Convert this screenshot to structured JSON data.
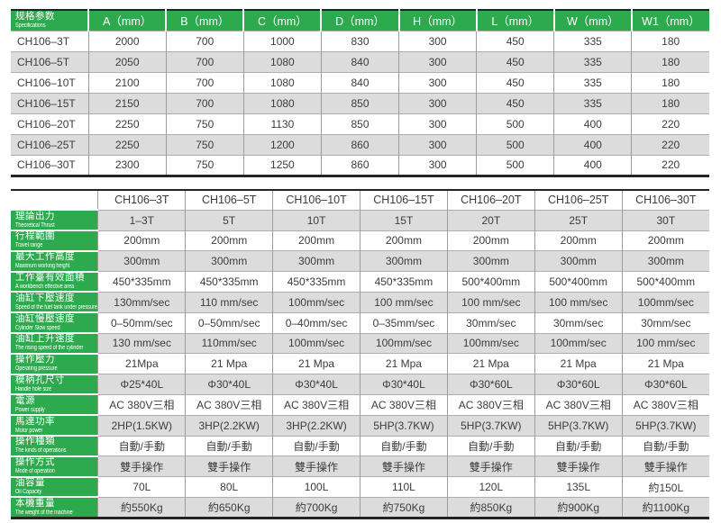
{
  "colors": {
    "accent_green": "#2daa4e",
    "stripe_gray": "#dcdcdc",
    "border_dark": "#232323",
    "divider_gray": "#9c9c9c",
    "text_dark": "#3c3c3c",
    "header_text": "#ffffff"
  },
  "dimensions_table": {
    "header": {
      "label_zh": "规格参数",
      "label_en": "Specifications",
      "columns": [
        "A（mm）",
        "B（mm）",
        "C（mm）",
        "D（mm）",
        "H（mm）",
        "L（mm）",
        "W（mm）",
        "W1（mm）"
      ]
    },
    "rows": [
      {
        "model": "CH106–3T",
        "values": [
          "2000",
          "700",
          "1000",
          "830",
          "300",
          "450",
          "335",
          "180"
        ]
      },
      {
        "model": "CH106–5T",
        "values": [
          "2050",
          "700",
          "1080",
          "840",
          "300",
          "450",
          "335",
          "180"
        ]
      },
      {
        "model": "CH106–10T",
        "values": [
          "2100",
          "700",
          "1080",
          "840",
          "300",
          "450",
          "335",
          "180"
        ]
      },
      {
        "model": "CH106–15T",
        "values": [
          "2150",
          "700",
          "1080",
          "850",
          "300",
          "450",
          "335",
          "180"
        ]
      },
      {
        "model": "CH106–20T",
        "values": [
          "2250",
          "750",
          "1130",
          "850",
          "300",
          "500",
          "400",
          "220"
        ]
      },
      {
        "model": "CH106–25T",
        "values": [
          "2250",
          "750",
          "1200",
          "860",
          "300",
          "500",
          "400",
          "220"
        ]
      },
      {
        "model": "CH106–30T",
        "values": [
          "2300",
          "750",
          "1250",
          "860",
          "300",
          "500",
          "400",
          "220"
        ]
      }
    ]
  },
  "specs_table": {
    "header": {
      "label_zh": "规格参数",
      "label_en": "Specifications",
      "models": [
        "CH106–3T",
        "CH106–5T",
        "CH106–10T",
        "CH106–15T",
        "CH106–20T",
        "CH106–25T",
        "CH106–30T"
      ]
    },
    "rows": [
      {
        "zh": "理論出力",
        "en": "Theoretical Thrust",
        "values": [
          "1–3T",
          "5T",
          "10T",
          "15T",
          "20T",
          "25T",
          "30T"
        ]
      },
      {
        "zh": "行程範圍",
        "en": "Travel range",
        "values": [
          "200mm",
          "200mm",
          "200mm",
          "200mm",
          "200mm",
          "200mm",
          "200mm"
        ]
      },
      {
        "zh": "最大工作高度",
        "en": "Maximum working height",
        "values": [
          "300mm",
          "300mm",
          "300mm",
          "300mm",
          "300mm",
          "300mm",
          "300mm"
        ]
      },
      {
        "zh": "工作臺有效面積",
        "en": "A workbench effective area",
        "values": [
          "450*335mm",
          "450*335mm",
          "450*335mm",
          "450*335mm",
          "500*400mm",
          "500*400mm",
          "500*400mm"
        ]
      },
      {
        "zh": "油缸下壓速度",
        "en": "Speed of the fuel tank under pressure",
        "values": [
          "130mm/sec",
          "110 mm/sec",
          "100mm/sec",
          "100 mm/sec",
          "100 mm/sec",
          "100 mm/sec",
          "100mm/sec"
        ]
      },
      {
        "zh": "油缸慢壓速度",
        "en": "Cylinder Slow speed",
        "values": [
          "0–50mm/sec",
          "0–50mm/sec",
          "0–40mm/sec",
          "0–35mm/sec",
          "30mm/sec",
          "30mm/sec",
          "30mm/sec"
        ]
      },
      {
        "zh": "油缸上升速度",
        "en": "The rising speed of the cylinder",
        "values": [
          "130 mm/sec",
          "110mm/sec",
          "100mm/sec",
          "100mm/sec",
          "100mm/sec",
          "100mm/sec",
          "100 mm/sec"
        ]
      },
      {
        "zh": "操作壓力",
        "en": "Operating pressure",
        "values": [
          "21Mpa",
          "21 Mpa",
          "21 Mpa",
          "21 Mpa",
          "21 Mpa",
          "21 Mpa",
          "21 Mpa"
        ]
      },
      {
        "zh": "模柄孔尺寸",
        "en": "Handle hole size",
        "values": [
          "Φ25*40L",
          "Φ30*40L",
          "Φ30*40L",
          "Φ30*40L",
          "Φ30*60L",
          "Φ30*60L",
          "Φ30*60L"
        ]
      },
      {
        "zh": "電源",
        "en": "Power supply",
        "values": [
          "AC 380V三相",
          "AC 380V三相",
          "AC 380V三相",
          "AC 380V三相",
          "AC 380V三相",
          "AC 380V三相",
          "AC 380V三相"
        ]
      },
      {
        "zh": "馬達功率",
        "en": "Motor power",
        "values": [
          "2HP(1.5KW)",
          "3HP(2.2KW)",
          "3HP(2.2KW)",
          "5HP(3.7KW)",
          "5HP(3.7KW)",
          "5HP(3.7KW)",
          "5HP(3.7KW)"
        ]
      },
      {
        "zh": "操作種類",
        "en": "The kinds of operations",
        "values": [
          "自動/手動",
          "自動/手動",
          "自動/手動",
          "自動/手動",
          "自動/手動",
          "自動/手動",
          "自動/手動"
        ]
      },
      {
        "zh": "操作方式",
        "en": "Mode of operation",
        "values": [
          "雙手操作",
          "雙手操作",
          "雙手操作",
          "雙手操作",
          "雙手操作",
          "雙手操作",
          "雙手操作"
        ]
      },
      {
        "zh": "油容量",
        "en": "Oil Capacity",
        "values": [
          "70L",
          "80L",
          "100L",
          "110L",
          "120L",
          "135L",
          "約150L"
        ]
      },
      {
        "zh": "本機重量",
        "en": "The weight of the machine",
        "values": [
          "約550Kg",
          "約650Kg",
          "約700Kg",
          "約750Kg",
          "約850Kg",
          "約900Kg",
          "約1100Kg"
        ]
      }
    ]
  }
}
